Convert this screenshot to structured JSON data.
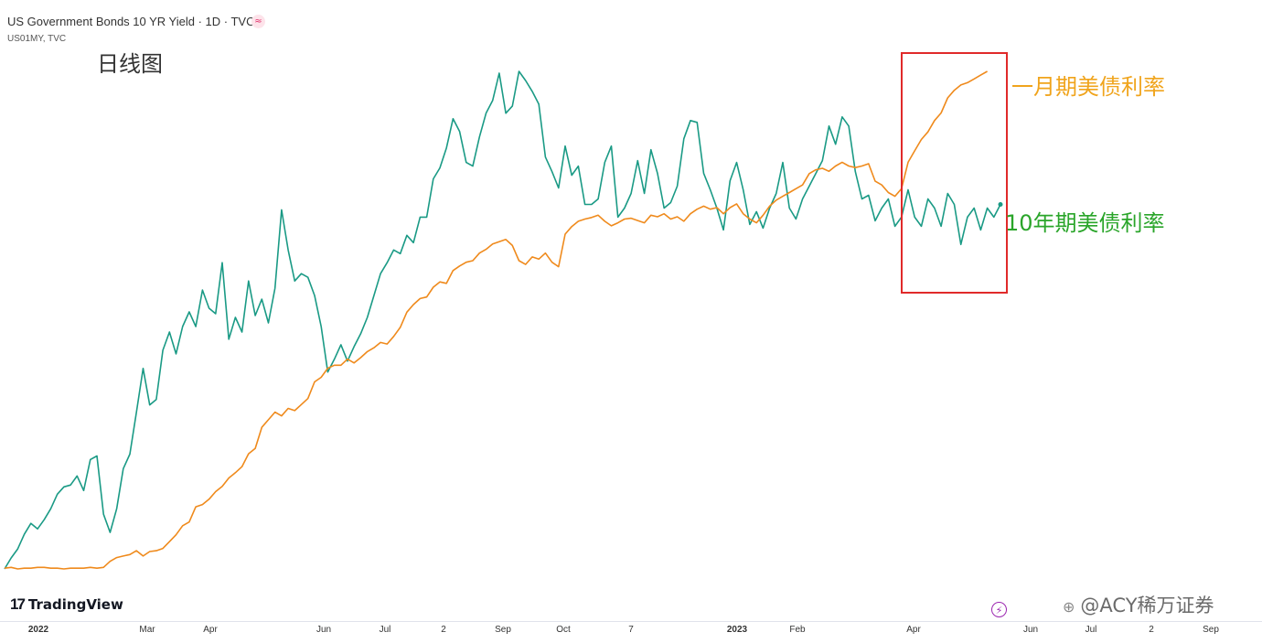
{
  "header": {
    "title": "US Government Bonds 10 YR Yield · 1D · TVC",
    "subtitle": "US01MY, TVC",
    "link_icon": "≈"
  },
  "timeframe_label": "日线图",
  "annotations": {
    "one_month": "一月期美债利率",
    "ten_year": "10年期美债利率"
  },
  "branding": {
    "logo_mark": "17",
    "logo_text": "TradingView",
    "bolt_icon": "⚡",
    "watermark": "@ACY稀万证券",
    "watermark_icon": "⊕"
  },
  "colors": {
    "ten_year": "#1a9a85",
    "one_month": "#ef8a1c",
    "highlight_box": "#e02a2a",
    "annot_one_month": "#f0a41c",
    "annot_ten_year": "#2aa52a"
  },
  "chart_data": {
    "type": "line",
    "x_ticks": [
      "2022",
      "Mar",
      "Apr",
      "Jun",
      "Jul",
      "2",
      "Sep",
      "Oct",
      "7",
      "2023",
      "Feb",
      "Apr",
      "Jun",
      "Jul",
      "2",
      "Sep"
    ],
    "bold_ticks": [
      "2022",
      "2023"
    ],
    "series": [
      {
        "id": "ten_year",
        "values": [
          1.52,
          1.58,
          1.63,
          1.71,
          1.77,
          1.74,
          1.79,
          1.85,
          1.93,
          1.97,
          1.98,
          2.03,
          1.95,
          2.12,
          2.14,
          1.82,
          1.72,
          1.85,
          2.07,
          2.15,
          2.38,
          2.62,
          2.42,
          2.45,
          2.72,
          2.82,
          2.7,
          2.85,
          2.93,
          2.85,
          3.05,
          2.95,
          2.92,
          3.2,
          2.78,
          2.9,
          2.82,
          3.1,
          2.91,
          3.0,
          2.87,
          3.06,
          3.49,
          3.27,
          3.1,
          3.14,
          3.12,
          3.02,
          2.85,
          2.6,
          2.67,
          2.75,
          2.66,
          2.74,
          2.81,
          2.9,
          3.02,
          3.14,
          3.2,
          3.27,
          3.25,
          3.35,
          3.31,
          3.45,
          3.45,
          3.66,
          3.72,
          3.83,
          3.99,
          3.92,
          3.75,
          3.73,
          3.89,
          4.02,
          4.09,
          4.24,
          4.02,
          4.06,
          4.25,
          4.2,
          4.14,
          4.07,
          3.78,
          3.7,
          3.61,
          3.84,
          3.68,
          3.73,
          3.52,
          3.52,
          3.55,
          3.75,
          3.84,
          3.45,
          3.5,
          3.58,
          3.76,
          3.58,
          3.82,
          3.69,
          3.5,
          3.53,
          3.62,
          3.88,
          3.98,
          3.97,
          3.69,
          3.6,
          3.5,
          3.38,
          3.65,
          3.75,
          3.6,
          3.41,
          3.48,
          3.39,
          3.5,
          3.58,
          3.75,
          3.5,
          3.44,
          3.55,
          3.62,
          3.69,
          3.76,
          3.95,
          3.85,
          4.0,
          3.95,
          3.7,
          3.55,
          3.57,
          3.43,
          3.5,
          3.55,
          3.4,
          3.45,
          3.6,
          3.45,
          3.4,
          3.55,
          3.5,
          3.4,
          3.58,
          3.52,
          3.3,
          3.45,
          3.5,
          3.38,
          3.5,
          3.45,
          3.52
        ]
      },
      {
        "id": "one_month",
        "values": [
          0.04,
          0.05,
          0.03,
          0.04,
          0.04,
          0.05,
          0.05,
          0.04,
          0.04,
          0.03,
          0.04,
          0.04,
          0.04,
          0.05,
          0.04,
          0.05,
          0.13,
          0.18,
          0.2,
          0.22,
          0.27,
          0.2,
          0.26,
          0.27,
          0.3,
          0.39,
          0.48,
          0.6,
          0.65,
          0.85,
          0.88,
          0.95,
          1.05,
          1.12,
          1.23,
          1.3,
          1.38,
          1.55,
          1.62,
          1.9,
          2.0,
          2.1,
          2.05,
          2.15,
          2.12,
          2.2,
          2.28,
          2.5,
          2.56,
          2.68,
          2.72,
          2.72,
          2.8,
          2.75,
          2.82,
          2.9,
          2.95,
          3.02,
          3.0,
          3.1,
          3.22,
          3.42,
          3.52,
          3.6,
          3.62,
          3.75,
          3.82,
          3.8,
          3.97,
          4.03,
          4.08,
          4.1,
          4.2,
          4.25,
          4.32,
          4.35,
          4.38,
          4.3,
          4.1,
          4.05,
          4.15,
          4.12,
          4.2,
          4.08,
          4.02,
          4.45,
          4.55,
          4.62,
          4.65,
          4.67,
          4.7,
          4.62,
          4.56,
          4.6,
          4.65,
          4.66,
          4.63,
          4.6,
          4.7,
          4.68,
          4.72,
          4.65,
          4.68,
          4.62,
          4.72,
          4.78,
          4.82,
          4.78,
          4.8,
          4.72,
          4.8,
          4.85,
          4.72,
          4.65,
          4.6,
          4.7,
          4.82,
          4.9,
          4.95,
          5.0,
          5.05,
          5.1,
          5.25,
          5.3,
          5.32,
          5.28,
          5.35,
          5.4,
          5.35,
          5.33,
          5.35,
          5.38,
          5.15,
          5.1,
          5.0,
          4.95,
          5.05,
          5.4,
          5.55,
          5.7,
          5.8,
          5.95,
          6.05,
          6.25,
          6.35,
          6.42,
          6.45,
          6.5,
          6.55,
          6.6
        ]
      }
    ],
    "highlight_box": {
      "start_index": 115,
      "end_index": 147
    }
  }
}
